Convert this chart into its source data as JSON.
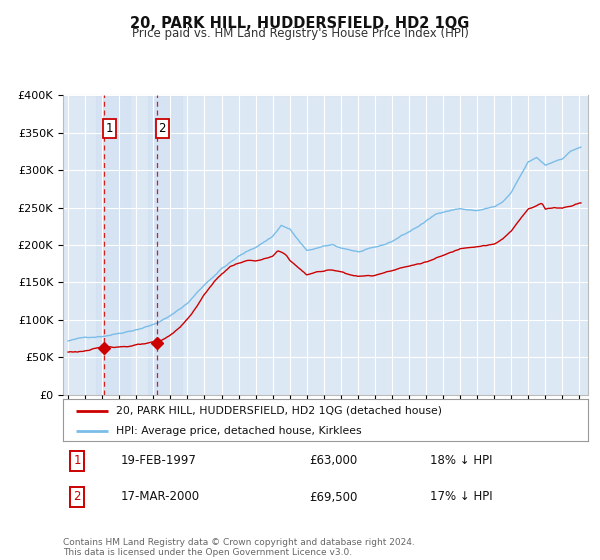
{
  "title": "20, PARK HILL, HUDDERSFIELD, HD2 1QG",
  "subtitle": "Price paid vs. HM Land Registry's House Price Index (HPI)",
  "legend_line1": "20, PARK HILL, HUDDERSFIELD, HD2 1QG (detached house)",
  "legend_line2": "HPI: Average price, detached house, Kirklees",
  "annotation1_num": "1",
  "annotation1_date": "19-FEB-1997",
  "annotation1_price": "£63,000",
  "annotation1_hpi": "18% ↓ HPI",
  "annotation2_num": "2",
  "annotation2_date": "17-MAR-2000",
  "annotation2_price": "£69,500",
  "annotation2_hpi": "17% ↓ HPI",
  "footer": "Contains HM Land Registry data © Crown copyright and database right 2024.\nThis data is licensed under the Open Government Licence v3.0.",
  "ylim": [
    0,
    400000
  ],
  "yticks": [
    0,
    50000,
    100000,
    150000,
    200000,
    250000,
    300000,
    350000,
    400000
  ],
  "ytick_labels": [
    "£0",
    "£50K",
    "£100K",
    "£150K",
    "£200K",
    "£250K",
    "£300K",
    "£350K",
    "£400K"
  ],
  "hpi_color": "#7abde8",
  "sale_color": "#cc0000",
  "vline_color": "#cc0000",
  "background_plot": "#dde8f5",
  "background_fig": "#ffffff",
  "grid_color": "#ffffff",
  "sale_dates": [
    1997.12,
    2000.21
  ],
  "sale_prices": [
    63000,
    69500
  ],
  "sale_labels": [
    "1",
    "2"
  ],
  "vline_shade_alpha": 0.35
}
